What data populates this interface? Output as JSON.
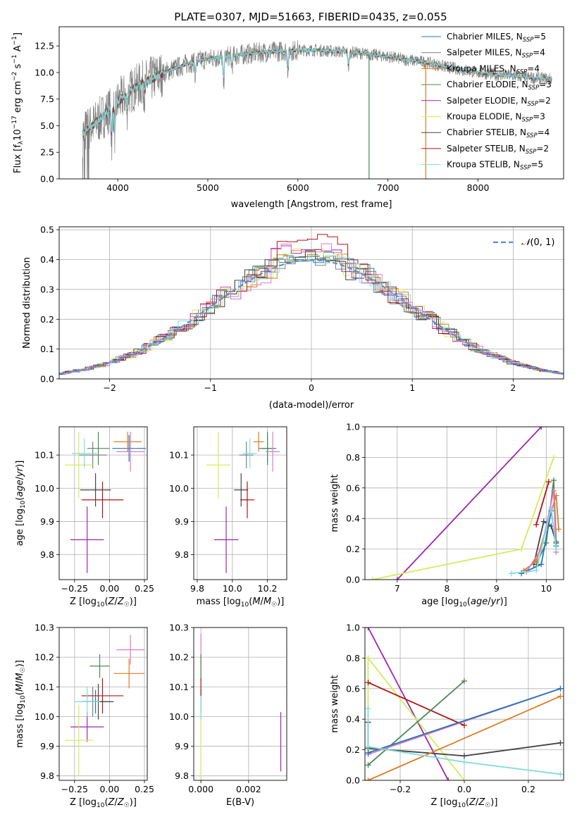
{
  "figure": {
    "title": "PLATE=0307, MJD=51663, FIBERID=0435, z=0.055"
  },
  "legend_spectrum": [
    {
      "label": "Chabrier MILES, N",
      "sub": "SSP",
      "tail": "=5",
      "color": "#1f77b4"
    },
    {
      "label": "Salpeter MILES, N",
      "sub": "SSP",
      "tail": "=4",
      "color": "#7f7f7f"
    },
    {
      "label": "Kroupa MILES, N",
      "sub": "SSP",
      "tail": "=4",
      "color": "#e07b1f"
    },
    {
      "label": "Chabrier ELODIE, N",
      "sub": "SSP",
      "tail": "=3",
      "color": "#4c8a52"
    },
    {
      "label": "Salpeter ELODIE, N",
      "sub": "SSP",
      "tail": "=2",
      "color": "#9b27ad"
    },
    {
      "label": "Kroupa ELODIE, N",
      "sub": "SSP",
      "tail": "=3",
      "color": "#d4ec5a"
    },
    {
      "label": "Chabrier STELIB, N",
      "sub": "SSP",
      "tail": "=4",
      "color": "#444444"
    },
    {
      "label": "Salpeter STELIB, N",
      "sub": "SSP",
      "tail": "=2",
      "color": "#b01414"
    },
    {
      "label": "Kroupa STELIB, N",
      "sub": "SSP",
      "tail": "=5",
      "color": "#7fdde0"
    }
  ],
  "chart_data": [
    {
      "id": "spectrum",
      "type": "line",
      "title": "PLATE=0307, MJD=51663, FIBERID=0435, z=0.055",
      "xlabel": "wavelength [Angstrom, rest frame]",
      "ylabel": "Flux [fλ10⁻¹⁷ erg cm⁻² s⁻¹ A⁻¹]",
      "xlim": [
        3350,
        8950
      ],
      "ylim": [
        0,
        14.3
      ],
      "xticks": [
        4000,
        5000,
        6000,
        7000,
        8000
      ],
      "yticks": [
        0.0,
        2.5,
        5.0,
        7.5,
        10.0,
        12.5
      ],
      "grid": false,
      "legend": "top-right",
      "continuum": [
        [
          3610,
          4.2
        ],
        [
          3700,
          4.9
        ],
        [
          3800,
          5.6
        ],
        [
          3900,
          6.4
        ],
        [
          4000,
          7.2
        ],
        [
          4100,
          8.0
        ],
        [
          4200,
          8.6
        ],
        [
          4300,
          9.1
        ],
        [
          4400,
          9.5
        ],
        [
          4500,
          9.9
        ],
        [
          4600,
          10.3
        ],
        [
          4700,
          10.6
        ],
        [
          4800,
          10.9
        ],
        [
          4900,
          11.1
        ],
        [
          5000,
          11.3
        ],
        [
          5200,
          11.5
        ],
        [
          5400,
          11.7
        ],
        [
          5600,
          11.9
        ],
        [
          5800,
          12.0
        ],
        [
          6000,
          12.1
        ],
        [
          6200,
          12.1
        ],
        [
          6400,
          12.0
        ],
        [
          6600,
          11.9
        ],
        [
          6800,
          11.7
        ],
        [
          7000,
          11.5
        ],
        [
          7200,
          11.2
        ],
        [
          7400,
          11.0
        ],
        [
          7600,
          10.6
        ],
        [
          7800,
          10.3
        ],
        [
          8000,
          10.0
        ],
        [
          8200,
          9.8
        ],
        [
          8400,
          9.7
        ],
        [
          8600,
          9.5
        ],
        [
          8800,
          9.4
        ]
      ],
      "absorption_features": [
        [
          3933,
          3.0
        ],
        [
          3968,
          2.5
        ],
        [
          4102,
          1.5
        ],
        [
          4300,
          1.2
        ],
        [
          4861,
          1.2
        ],
        [
          5175,
          2.5
        ],
        [
          5270,
          1.0
        ],
        [
          5890,
          1.8
        ],
        [
          6563,
          1.5
        ]
      ],
      "artifacts": [
        [
          6790,
          0.0
        ],
        [
          7420,
          0.0
        ]
      ]
    },
    {
      "id": "residuals",
      "type": "histogram",
      "xlabel": "(data-model)/error",
      "ylabel": "Normed distribution",
      "xlim": [
        -2.5,
        2.5
      ],
      "ylim": [
        0,
        0.51
      ],
      "xticks": [
        -2,
        -1,
        0,
        1,
        2
      ],
      "yticks": [
        0.0,
        0.1,
        0.2,
        0.3,
        0.4,
        0.5
      ],
      "grid": true,
      "legend": "top-right",
      "reference_curve": {
        "name": "N(0,1)",
        "style": "dashed",
        "color": "#5b8fd6"
      },
      "bin_width": 0.1,
      "series_peaks": [
        {
          "color": "#1f77b4",
          "seed": 1,
          "note_peak": 0.42
        },
        {
          "color": "#7f7f7f",
          "seed": 2,
          "note_peak": 0.4
        },
        {
          "color": "#e07b1f",
          "seed": 3,
          "note_peak": 0.42
        },
        {
          "color": "#4c8a52",
          "seed": 4,
          "note_peak": 0.42
        },
        {
          "color": "#9b27ad",
          "seed": 5,
          "note_peak": 0.45
        },
        {
          "color": "#d4ec5a",
          "seed": 6,
          "note_peak": 0.43
        },
        {
          "color": "#444444",
          "seed": 7,
          "note_peak": 0.41
        },
        {
          "color": "#b01414",
          "seed": 8,
          "note_peak": 0.49
        },
        {
          "color": "#7fdde0",
          "seed": 9,
          "note_peak": 0.39
        },
        {
          "color": "#e377c2",
          "seed": 10,
          "note_peak": 0.46
        }
      ]
    },
    {
      "id": "age-vs-Z",
      "type": "errorbar",
      "xlabel": "Z [log10(Z/Z☉)]",
      "ylabel": "age  [log10(age/yr)]",
      "xlim": [
        -0.36,
        0.27
      ],
      "ylim": [
        9.725,
        10.185
      ],
      "xticks": [
        -0.25,
        0.0,
        0.25
      ],
      "yticks": [
        9.8,
        9.9,
        10.0,
        10.1
      ],
      "grid": true,
      "points": [
        {
          "x": 0.14,
          "y": 10.12,
          "xerr": 0.12,
          "yerr": 0.04,
          "color": "#1f77b4"
        },
        {
          "x": -0.12,
          "y": 10.1,
          "xerr": 0.1,
          "yerr": 0.04,
          "color": "#7f7f7f"
        },
        {
          "x": 0.13,
          "y": 10.14,
          "xerr": 0.1,
          "yerr": 0.03,
          "color": "#e07b1f"
        },
        {
          "x": -0.08,
          "y": 10.12,
          "xerr": 0.08,
          "yerr": 0.05,
          "color": "#4c8a52"
        },
        {
          "x": -0.16,
          "y": 9.845,
          "xerr": 0.12,
          "yerr": 0.1,
          "color": "#9b27ad"
        },
        {
          "x": -0.22,
          "y": 10.07,
          "xerr": 0.1,
          "yerr": 0.1,
          "color": "#d4ec5a"
        },
        {
          "x": -0.1,
          "y": 9.995,
          "xerr": 0.11,
          "yerr": 0.05,
          "color": "#444444"
        },
        {
          "x": -0.05,
          "y": 9.965,
          "xerr": 0.15,
          "yerr": 0.055,
          "color": "#b01414"
        },
        {
          "x": -0.18,
          "y": 10.105,
          "xerr": 0.09,
          "yerr": 0.045,
          "color": "#7fdde0"
        },
        {
          "x": 0.15,
          "y": 10.11,
          "xerr": 0.1,
          "yerr": 0.06,
          "color": "#e377c2"
        }
      ]
    },
    {
      "id": "age-vs-mass",
      "type": "errorbar",
      "xlabel": "mass [log10(M/M☉)]",
      "ylabel": "",
      "xlim": [
        9.78,
        10.31
      ],
      "ylim": [
        9.725,
        10.185
      ],
      "xticks": [
        9.8,
        10.0,
        10.2
      ],
      "yticks": [
        9.8,
        9.9,
        10.0,
        10.1
      ],
      "grid": true,
      "points": [
        {
          "x": 10.2,
          "y": 10.12,
          "xerr": 0.05,
          "yerr": 0.04,
          "color": "#1f77b4"
        },
        {
          "x": 10.08,
          "y": 10.1,
          "xerr": 0.04,
          "yerr": 0.04,
          "color": "#7f7f7f"
        },
        {
          "x": 10.15,
          "y": 10.14,
          "xerr": 0.03,
          "yerr": 0.03,
          "color": "#e07b1f"
        },
        {
          "x": 10.2,
          "y": 10.12,
          "xerr": 0.03,
          "yerr": 0.05,
          "color": "#4c8a52"
        },
        {
          "x": 9.965,
          "y": 9.845,
          "xerr": 0.07,
          "yerr": 0.1,
          "color": "#9b27ad"
        },
        {
          "x": 9.92,
          "y": 10.07,
          "xerr": 0.07,
          "yerr": 0.1,
          "color": "#d4ec5a"
        },
        {
          "x": 10.05,
          "y": 9.995,
          "xerr": 0.04,
          "yerr": 0.05,
          "color": "#444444"
        },
        {
          "x": 10.085,
          "y": 9.965,
          "xerr": 0.04,
          "yerr": 0.055,
          "color": "#b01414"
        },
        {
          "x": 10.1,
          "y": 10.105,
          "xerr": 0.04,
          "yerr": 0.045,
          "color": "#7fdde0"
        },
        {
          "x": 10.23,
          "y": 10.11,
          "xerr": 0.04,
          "yerr": 0.06,
          "color": "#e377c2"
        }
      ]
    },
    {
      "id": "weight-vs-age",
      "type": "line",
      "xlabel": "age  [log10(age/yr)]",
      "ylabel": "mass weight",
      "xlim": [
        6.35,
        10.35
      ],
      "ylim": [
        0,
        1.0
      ],
      "xticks": [
        7,
        8,
        9,
        10
      ],
      "yticks": [
        0.0,
        0.2,
        0.4,
        0.6,
        0.8,
        1.0
      ],
      "grid": true,
      "series": [
        {
          "color": "#9b27ad",
          "x": [
            7.0,
            9.9
          ],
          "y": [
            0.0,
            1.0
          ]
        },
        {
          "color": "#d4ec5a",
          "x": [
            6.5,
            9.5,
            10.15
          ],
          "y": [
            0.0,
            0.2,
            0.8
          ]
        },
        {
          "color": "#b01414",
          "x": [
            9.8,
            10.05
          ],
          "y": [
            0.36,
            0.64
          ]
        },
        {
          "color": "#4c8a52",
          "x": [
            9.8,
            10.0,
            10.15,
            10.2
          ],
          "y": [
            0.1,
            0.24,
            0.65,
            0.25
          ]
        },
        {
          "color": "#444444",
          "x": [
            9.75,
            9.95,
            10.1,
            10.2
          ],
          "y": [
            0.1,
            0.38,
            0.35,
            0.24
          ]
        },
        {
          "color": "#e07b1f",
          "x": [
            9.55,
            9.8,
            10.2,
            10.25
          ],
          "y": [
            0.06,
            0.12,
            0.55,
            0.33
          ]
        },
        {
          "color": "#e377c2",
          "x": [
            9.6,
            9.9,
            10.15,
            10.2
          ],
          "y": [
            0.05,
            0.2,
            0.58,
            0.18
          ]
        },
        {
          "color": "#1f77b4",
          "x": [
            9.5,
            9.9,
            10.1,
            10.2
          ],
          "y": [
            0.04,
            0.1,
            0.45,
            0.22
          ]
        },
        {
          "color": "#7fdde0",
          "x": [
            9.3,
            9.8,
            10.1,
            10.2
          ],
          "y": [
            0.04,
            0.06,
            0.47,
            0.2
          ]
        }
      ]
    },
    {
      "id": "mass-vs-Z",
      "type": "errorbar",
      "xlabel": "Z [log10(Z/Z☉)]",
      "ylabel": "mass [log10(M/M☉)]",
      "xlim": [
        -0.36,
        0.27
      ],
      "ylim": [
        9.785,
        10.3
      ],
      "xticks": [
        -0.25,
        0.0,
        0.25
      ],
      "yticks": [
        9.8,
        9.9,
        10.0,
        10.1,
        10.2,
        10.3
      ],
      "grid": true,
      "points": [
        {
          "x": -0.1,
          "y": 10.05,
          "xerr": 0.1,
          "yerr": 0.04,
          "color": "#1f77b4"
        },
        {
          "x": -0.12,
          "y": 10.05,
          "xerr": 0.1,
          "yerr": 0.05,
          "color": "#7f7f7f"
        },
        {
          "x": 0.14,
          "y": 10.145,
          "xerr": 0.11,
          "yerr": 0.05,
          "color": "#e07b1f"
        },
        {
          "x": -0.07,
          "y": 10.17,
          "xerr": 0.07,
          "yerr": 0.04,
          "color": "#4c8a52"
        },
        {
          "x": -0.16,
          "y": 9.965,
          "xerr": 0.12,
          "yerr": 0.05,
          "color": "#9b27ad"
        },
        {
          "x": -0.22,
          "y": 9.92,
          "xerr": 0.1,
          "yerr": 0.12,
          "color": "#d4ec5a"
        },
        {
          "x": -0.08,
          "y": 10.05,
          "xerr": 0.11,
          "yerr": 0.06,
          "color": "#444444"
        },
        {
          "x": -0.05,
          "y": 10.07,
          "xerr": 0.15,
          "yerr": 0.06,
          "color": "#b01414"
        },
        {
          "x": -0.16,
          "y": 10.05,
          "xerr": 0.09,
          "yerr": 0.05,
          "color": "#7fdde0"
        },
        {
          "x": 0.15,
          "y": 10.225,
          "xerr": 0.1,
          "yerr": 0.05,
          "color": "#e377c2"
        }
      ]
    },
    {
      "id": "mass-vs-ebv",
      "type": "errorbar",
      "xlabel": "E(B-V)",
      "ylabel": "",
      "xlim": [
        -0.0003,
        0.0036
      ],
      "ylim": [
        9.785,
        10.3
      ],
      "xticks": [
        0.0,
        0.002
      ],
      "yticks": [
        9.8,
        9.9,
        10.0,
        10.1,
        10.2,
        10.3
      ],
      "grid": true,
      "points": [
        {
          "x": 0.0,
          "y": 10.05,
          "xerr": 0.0,
          "yerr": 0.04,
          "color": "#1f77b4"
        },
        {
          "x": 0.0,
          "y": 10.2,
          "xerr": 0.0,
          "yerr": 0.08,
          "color": "#e377c2"
        },
        {
          "x": 0.0,
          "y": 10.17,
          "xerr": 0.0,
          "yerr": 0.04,
          "color": "#4c8a52"
        },
        {
          "x": 0.0,
          "y": 10.1,
          "xerr": 0.0,
          "yerr": 0.03,
          "color": "#b01414"
        },
        {
          "x": 0.0,
          "y": 9.9,
          "xerr": 0.0,
          "yerr": 0.12,
          "color": "#d4ec5a"
        },
        {
          "x": 0.0,
          "y": 10.03,
          "xerr": 0.0,
          "yerr": 0.04,
          "color": "#7fdde0"
        },
        {
          "x": 0.00335,
          "y": 9.915,
          "xerr": 0.0,
          "yerr": 0.1,
          "color": "#9b27ad"
        }
      ]
    },
    {
      "id": "weight-vs-Z",
      "type": "line",
      "xlabel": "Z [log10(Z/Z☉)]",
      "ylabel": "mass weight",
      "xlim": [
        -0.31,
        0.31
      ],
      "ylim": [
        0,
        1.0
      ],
      "xticks": [
        -0.2,
        0.0,
        0.2
      ],
      "yticks": [
        0.0,
        0.2,
        0.4,
        0.6,
        0.8,
        1.0
      ],
      "grid": true,
      "series": [
        {
          "color": "#9b27ad",
          "x": [
            -0.3,
            -0.05
          ],
          "y": [
            1.0,
            0.0
          ]
        },
        {
          "color": "#d4ec5a",
          "x": [
            -0.3,
            -0.3,
            0.0
          ],
          "y": [
            0.2,
            0.8,
            0.0
          ]
        },
        {
          "color": "#b01414",
          "x": [
            -0.3,
            0.0
          ],
          "y": [
            0.64,
            0.36
          ]
        },
        {
          "color": "#4c8a52",
          "x": [
            -0.3,
            0.0
          ],
          "y": [
            0.1,
            0.65
          ]
        },
        {
          "color": "#444444",
          "x": [
            -0.3,
            -0.3,
            0.0,
            0.3
          ],
          "y": [
            0.38,
            0.21,
            0.16,
            0.245
          ]
        },
        {
          "color": "#e07b1f",
          "x": [
            -0.3,
            0.3
          ],
          "y": [
            0.0,
            0.55
          ]
        },
        {
          "color": "#e377c2",
          "x": [
            -0.3,
            0.3
          ],
          "y": [
            0.17,
            0.6
          ]
        },
        {
          "color": "#1f77b4",
          "x": [
            -0.3,
            0.3
          ],
          "y": [
            0.18,
            0.6
          ]
        },
        {
          "color": "#7fdde0",
          "x": [
            -0.3,
            -0.3,
            0.0,
            0.3
          ],
          "y": [
            0.47,
            0.22,
            0.12,
            0.04
          ]
        }
      ]
    }
  ]
}
